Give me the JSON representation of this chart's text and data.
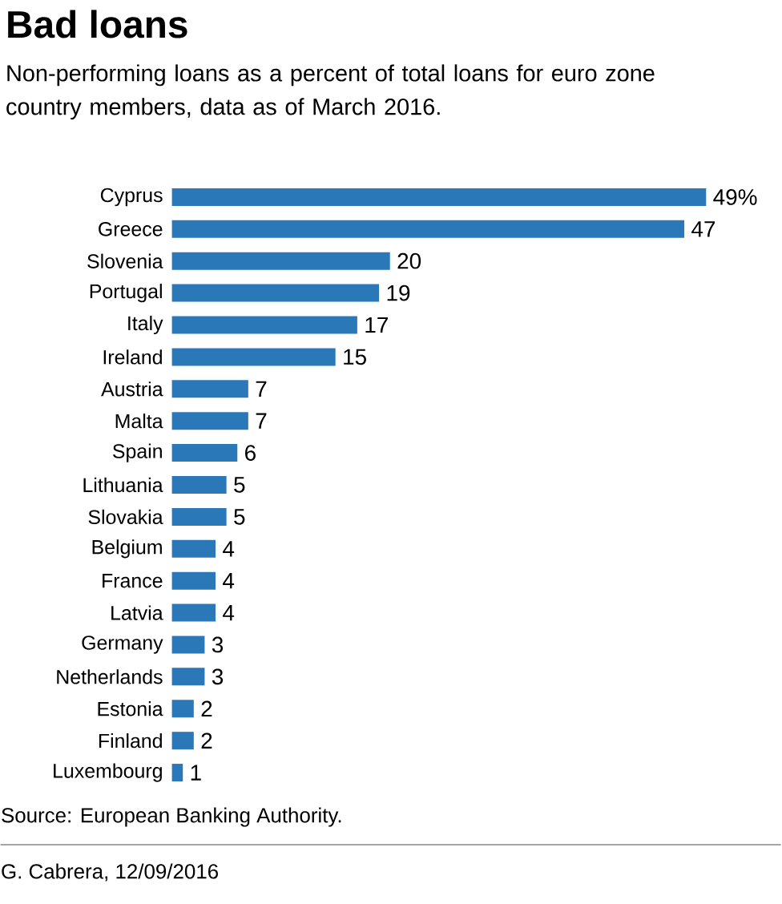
{
  "chart_data": {
    "type": "bar",
    "orientation": "horizontal",
    "title": "Bad loans",
    "subtitle": "Non-performing loans as a percent of total loans for euro zone country members, data as of March 2016.",
    "categories": [
      "Cyprus",
      "Greece",
      "Slovenia",
      "Portugal",
      "Italy",
      "Ireland",
      "Austria",
      "Malta",
      "Spain",
      "Lithuania",
      "Slovakia",
      "Belgium",
      "France",
      "Latvia",
      "Germany",
      "Netherlands",
      "Estonia",
      "Finland",
      "Luxembourg"
    ],
    "values": [
      49,
      47,
      20,
      19,
      17,
      15,
      7,
      7,
      6,
      5,
      5,
      4,
      4,
      4,
      3,
      3,
      2,
      2,
      1
    ],
    "value_labels": [
      "49%",
      "47",
      "20",
      "19",
      "17",
      "15",
      "7",
      "7",
      "6",
      "5",
      "5",
      "4",
      "4",
      "4",
      "3",
      "3",
      "2",
      "2",
      "1"
    ],
    "color": "#2a78b8",
    "annotations": [
      "Source: European Banking Authority.",
      "G. Cabrera,  12/09/2016"
    ]
  }
}
